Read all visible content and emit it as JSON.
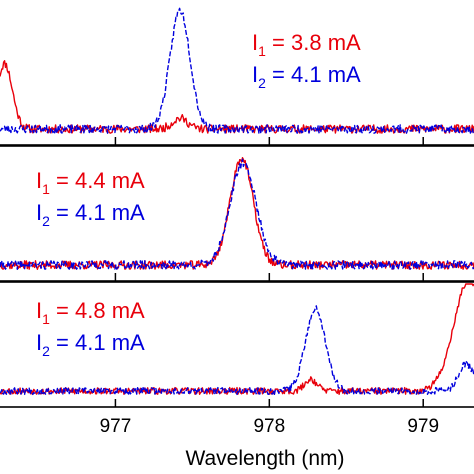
{
  "chart_data": {
    "type": "line",
    "xlabel": "Wavelength (nm)",
    "xlim": [
      976.25,
      979.33
    ],
    "xticks": [
      977,
      978,
      979
    ],
    "tick_labels": [
      "977",
      "978",
      "979"
    ],
    "colors": {
      "I1": "#e8000b",
      "I2": "#0000dd"
    },
    "panels": [
      {
        "id": "top",
        "annotations": [
          {
            "symbol": "I",
            "sub": "1",
            "text": " = 3.8 mA",
            "color": "#e8000b"
          },
          {
            "symbol": "I",
            "sub": "2",
            "text": " = 4.1 mA",
            "color": "#0000dd"
          }
        ],
        "series": [
          {
            "peaks": [
              [
                976.28,
                0.55,
                0.05
              ],
              [
                977.42,
                0.09,
                0.05
              ]
            ],
            "noise": 0.035,
            "seed": 11
          },
          {
            "peaks": [
              [
                977.42,
                1.0,
                0.065
              ]
            ],
            "noise": 0.035,
            "seed": 23
          }
        ]
      },
      {
        "id": "middle",
        "annotations": [
          {
            "symbol": "I",
            "sub": "1",
            "text": " = 4.4 mA",
            "color": "#e8000b"
          },
          {
            "symbol": "I",
            "sub": "2",
            "text": " = 4.1 mA",
            "color": "#0000dd"
          }
        ],
        "series": [
          {
            "peaks": [
              [
                977.82,
                1.0,
                0.075
              ]
            ],
            "noise": 0.04,
            "seed": 37
          },
          {
            "peaks": [
              [
                977.83,
                0.95,
                0.085
              ]
            ],
            "noise": 0.04,
            "seed": 41
          }
        ]
      },
      {
        "id": "bottom",
        "annotations": [
          {
            "symbol": "I",
            "sub": "1",
            "text": " = 4.8 mA",
            "color": "#e8000b"
          },
          {
            "symbol": "I",
            "sub": "2",
            "text": " = 4.1 mA",
            "color": "#0000dd"
          }
        ],
        "series": [
          {
            "peaks": [
              [
                978.27,
                0.12,
                0.04
              ],
              [
                979.3,
                1.15,
                0.1
              ]
            ],
            "noise": 0.035,
            "seed": 53
          },
          {
            "peaks": [
              [
                978.3,
                0.85,
                0.065
              ],
              [
                979.28,
                0.28,
                0.05
              ]
            ],
            "noise": 0.035,
            "seed": 67
          }
        ]
      }
    ]
  }
}
